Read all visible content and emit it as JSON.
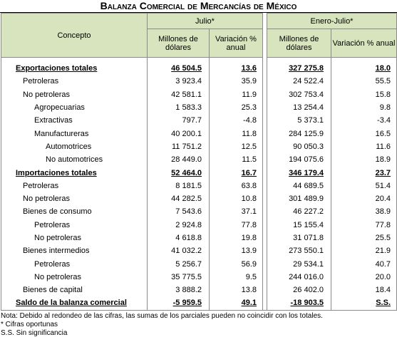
{
  "title": "Balanza Comercial de Mercancías de México",
  "header": {
    "concept": "Concepto",
    "periods": [
      "Julio*",
      "Enero-Julio*"
    ],
    "columns": [
      "Millones de dólares",
      "Variación % anual",
      "Millones de dólares",
      "Variación % anual"
    ]
  },
  "rows": [
    [
      "Exportaciones totales",
      "46 504.5",
      "13.6",
      "327 275.8",
      "18.0"
    ],
    [
      "Petroleras",
      "3 923.4",
      "35.9",
      "24 522.4",
      "55.5"
    ],
    [
      "No petroleras",
      "42 581.1",
      "11.9",
      "302 753.4",
      "15.8"
    ],
    [
      "Agropecuarias",
      "1 583.3",
      "25.3",
      "13 254.4",
      "9.8"
    ],
    [
      "Extractivas",
      "797.7",
      "-4.8",
      "5 373.1",
      "-3.4"
    ],
    [
      "Manufactureras",
      "40 200.1",
      "11.8",
      "284 125.9",
      "16.5"
    ],
    [
      "Automotrices",
      "11 751.2",
      "12.5",
      "90 050.3",
      "11.6"
    ],
    [
      "No automotrices",
      "28 449.0",
      "11.5",
      "194 075.6",
      "18.9"
    ],
    [
      "Importaciones totales",
      "52 464.0",
      "16.7",
      "346 179.4",
      "23.7"
    ],
    [
      "Petroleras",
      "8 181.5",
      "63.8",
      "44 689.5",
      "51.4"
    ],
    [
      "No petroleras",
      "44 282.5",
      "10.8",
      "301 489.9",
      "20.4"
    ],
    [
      "Bienes de consumo",
      "7 543.6",
      "37.1",
      "46 227.2",
      "38.9"
    ],
    [
      "Petroleras",
      "2 924.8",
      "77.8",
      "15 155.4",
      "77.8"
    ],
    [
      "No petroleras",
      "4 618.8",
      "19.8",
      "31 071.8",
      "25.5"
    ],
    [
      "Bienes intermedios",
      "41 032.2",
      "13.9",
      "273 550.1",
      "21.9"
    ],
    [
      "Petroleras",
      "5 256.7",
      "56.9",
      "29 534.1",
      "40.7"
    ],
    [
      "No petroleras",
      "35 775.5",
      "9.5",
      "244 016.0",
      "20.0"
    ],
    [
      "Bienes de capital",
      "3 888.2",
      "13.8",
      "26 402.0",
      "18.4"
    ],
    [
      "Saldo de la balanza comercial",
      "-5 959.5",
      "49.1",
      "-18 903.5",
      "S.S."
    ]
  ],
  "notes": [
    "Nota: Debido al redondeo de las cifras, las sumas de los parciales pueden no coincidir con los totales.",
    "* Cifras oportunas",
    "S.S. Sin significancia"
  ]
}
